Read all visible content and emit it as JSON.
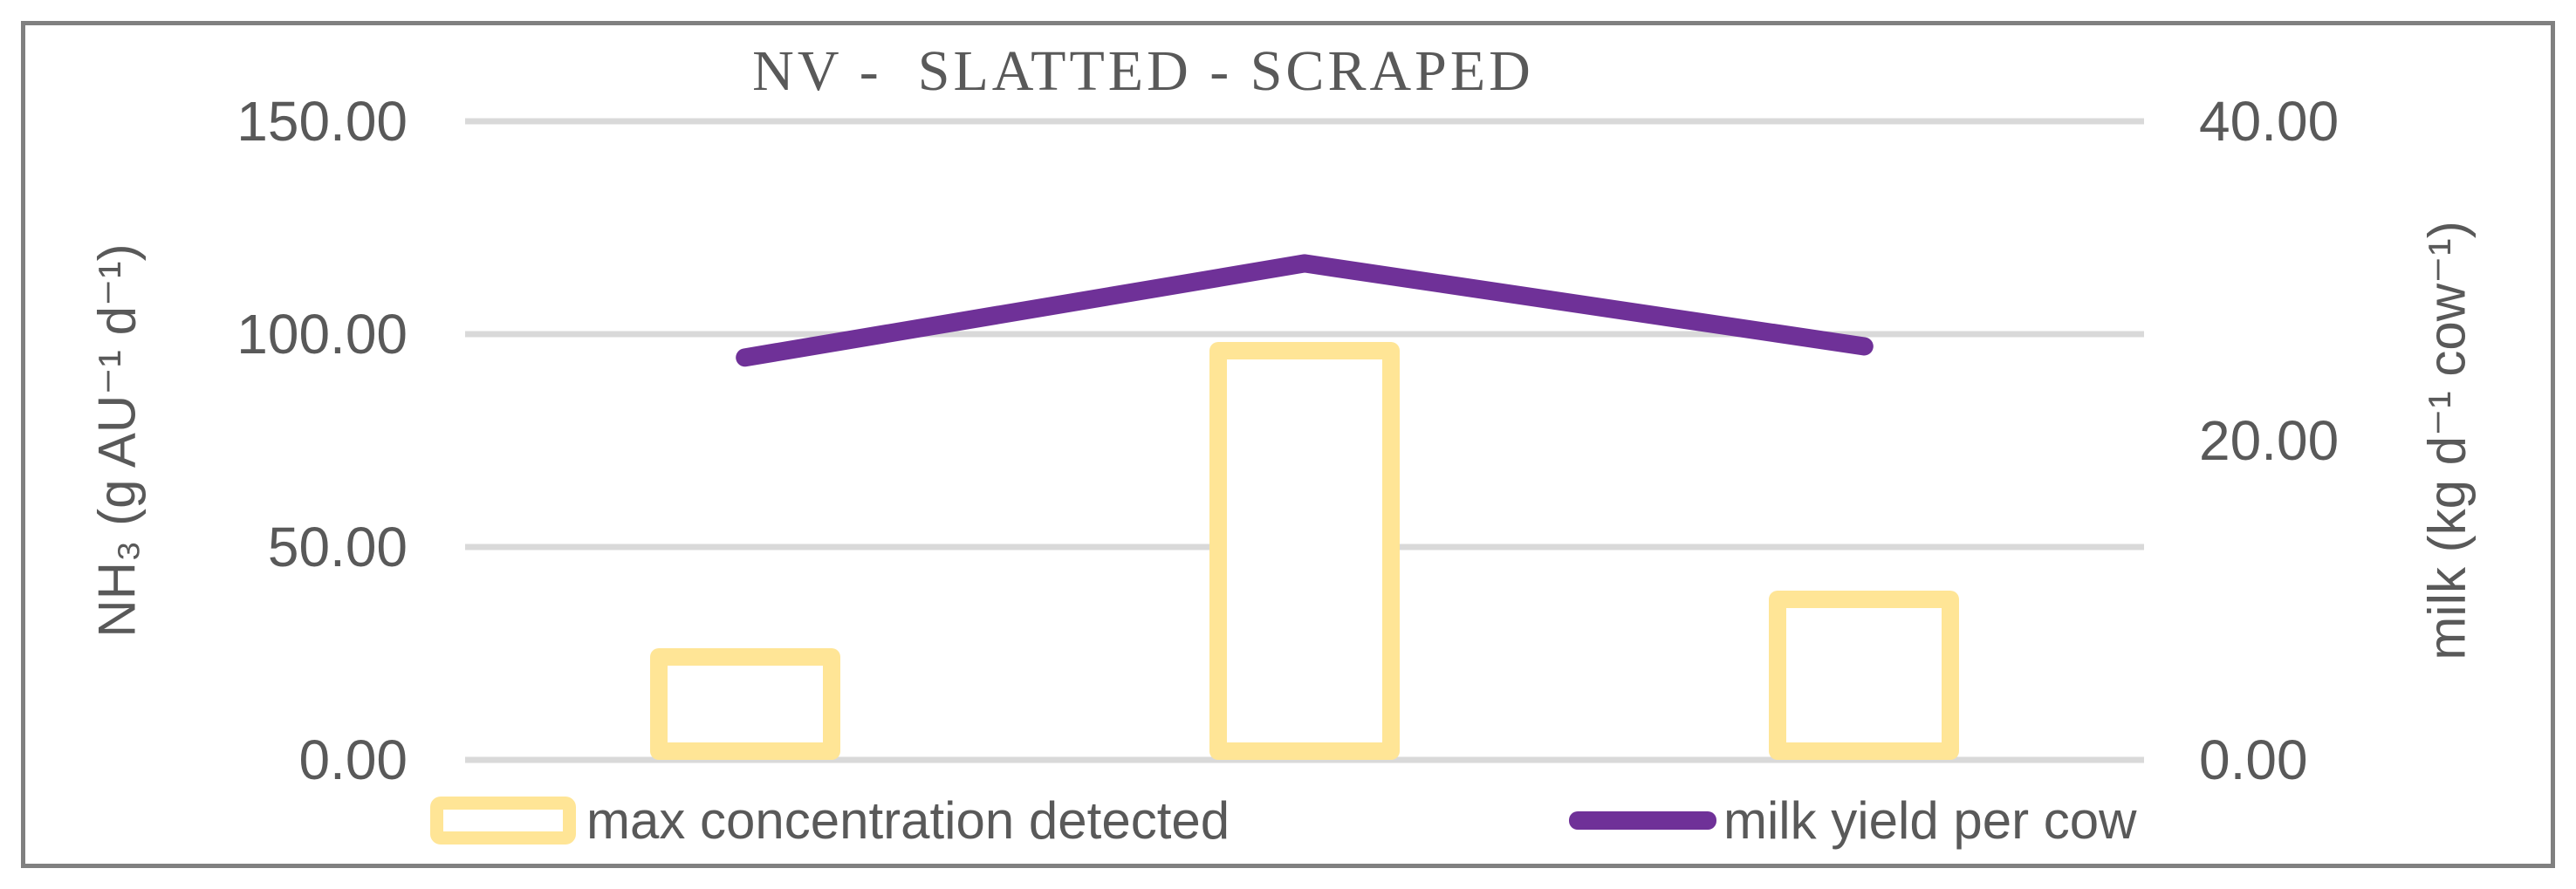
{
  "title": "NV -  SLATTED - SCRAPED",
  "colors": {
    "bar_border": "#FFE596",
    "line": "#6F3198",
    "text": "#595959",
    "gridline": "#D9D9D9",
    "frame_border": "#808080"
  },
  "left_axis": {
    "title": "NH₃ (g AU⁻¹ d⁻¹)",
    "ticks": [
      "150.00",
      "100.00",
      "50.00",
      "0.00"
    ]
  },
  "right_axis": {
    "title": "milk (kg d⁻¹ cow⁻¹)",
    "ticks": [
      "40.00",
      "20.00",
      "0.00"
    ]
  },
  "legend": [
    {
      "label": "max concentration detected",
      "swatch": "yellow-outlined-bar"
    },
    {
      "label": "milk yield per cow",
      "swatch": "purple-line"
    }
  ],
  "chart_data": {
    "type": "bar+line combo, dual y-axes",
    "title": "NV - SLATTED - SCRAPED",
    "categories": [
      "",
      "",
      ""
    ],
    "series": [
      {
        "name": "max concentration detected",
        "type": "bar",
        "axis": "left",
        "values": [
          26.2,
          98.2,
          39.8
        ]
      },
      {
        "name": "milk yield per cow",
        "type": "line",
        "axis": "right",
        "values": [
          25.2,
          31.1,
          25.9
        ]
      }
    ],
    "left_ylabel": "NH3 (g AU-1 d-1)",
    "right_ylabel": "milk (kg d-1 cow-1)",
    "left_ylim": [
      0,
      150
    ],
    "right_ylim": [
      0,
      40
    ],
    "left_tick_step": 50,
    "right_tick_step": 20,
    "grid": "horizontal gridlines at left-axis ticks",
    "legend_position": "bottom",
    "x_tick_labels": "none"
  }
}
